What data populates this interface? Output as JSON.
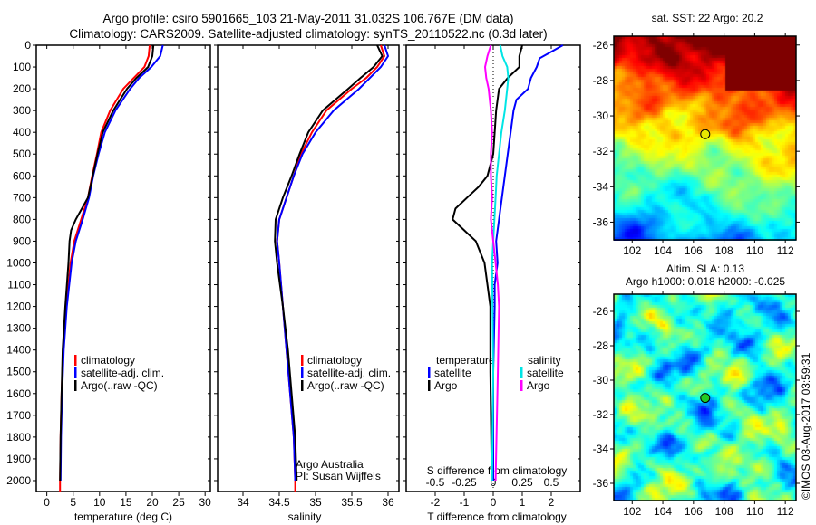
{
  "title_line1": "Argo profile: csiro 5901665_103 21-May-2011 31.032S 106.767E (DM data)",
  "title_line2": "Climatology: CARS2009. Satellite-adjusted climatology: synTS_20110522.nc (0.3d later)",
  "timestamp": "©IMOS 03-Aug-2017 03:59:31",
  "colors": {
    "climatology": "#ff0000",
    "satellite": "#0000ff",
    "argo": "#000000",
    "sal_satellite": "#00e5e5",
    "sal_argo": "#ff00ff"
  },
  "chart_data": [
    {
      "type": "line",
      "xlabel": "temperature (deg C)",
      "ylabel": "",
      "xlim": [
        -2,
        31
      ],
      "ylim": [
        2050,
        0
      ],
      "xticks": [
        0,
        5,
        10,
        15,
        20,
        25,
        30
      ],
      "yticks": [
        0,
        100,
        200,
        300,
        400,
        500,
        600,
        700,
        800,
        900,
        1000,
        1100,
        1200,
        1300,
        1400,
        1500,
        1600,
        1700,
        1800,
        1900,
        2000
      ],
      "legend": [
        "climatology",
        "satellite-adj. clim.",
        "Argo(..raw -QC)"
      ],
      "series": [
        {
          "name": "climatology",
          "color": "#ff0000",
          "depth": [
            0,
            50,
            100,
            150,
            200,
            300,
            400,
            500,
            600,
            700,
            800,
            900,
            1000,
            1200,
            1400,
            1600,
            1800,
            2000,
            2050
          ],
          "values": [
            19.5,
            19.3,
            18.5,
            16.5,
            14.5,
            12,
            10.3,
            9.5,
            8.6,
            7.8,
            6.5,
            5.2,
            4.5,
            3.7,
            3.1,
            2.8,
            2.6,
            2.5,
            2.5
          ]
        },
        {
          "name": "satellite-adj. clim.",
          "color": "#0000ff",
          "depth": [
            0,
            50,
            100,
            150,
            200,
            300,
            400,
            500,
            600,
            700,
            800,
            900,
            1000,
            1200,
            1400,
            1600,
            1800,
            2000
          ],
          "values": [
            22,
            21.5,
            19.8,
            17.5,
            15.8,
            13,
            11,
            9.8,
            8.8,
            8,
            6.8,
            5.5,
            4.7,
            3.8,
            3.2,
            2.9,
            2.7,
            2.6
          ]
        },
        {
          "name": "Argo(..raw -QC)",
          "color": "#000000",
          "depth": [
            0,
            50,
            100,
            150,
            200,
            300,
            400,
            500,
            600,
            700,
            800,
            850,
            900,
            1000,
            1200,
            1400,
            1600,
            1800,
            2000
          ],
          "values": [
            20.2,
            20,
            19.2,
            17,
            15.2,
            12.6,
            10.6,
            9.6,
            8.7,
            7.8,
            5.5,
            4.6,
            4.3,
            4.1,
            3.5,
            3.0,
            2.8,
            2.6,
            2.5
          ]
        }
      ]
    },
    {
      "type": "line",
      "xlabel": "salinity",
      "xlim": [
        33.65,
        36.15
      ],
      "ylim": [
        2050,
        0
      ],
      "xticks": [
        34,
        34.5,
        35,
        35.5,
        36
      ],
      "legend": [
        "climatology",
        "satellite-adj. clim.",
        "Argo(..raw -QC)"
      ],
      "annotation": [
        "Argo Australia",
        "PI: Susan Wijffels"
      ],
      "series": [
        {
          "name": "climatology",
          "color": "#ff0000",
          "depth": [
            0,
            50,
            100,
            150,
            200,
            300,
            400,
            500,
            600,
            700,
            800,
            900,
            1000,
            1200,
            1400,
            1600,
            1800,
            2000,
            2050
          ],
          "values": [
            35.9,
            35.95,
            35.85,
            35.7,
            35.5,
            35.15,
            34.95,
            34.8,
            34.7,
            34.6,
            34.5,
            34.47,
            34.5,
            34.55,
            34.6,
            34.65,
            34.7,
            34.72,
            34.72
          ]
        },
        {
          "name": "satellite-adj. clim.",
          "color": "#0000ff",
          "depth": [
            0,
            50,
            100,
            150,
            200,
            300,
            400,
            500,
            600,
            700,
            800,
            900,
            1000,
            1200,
            1400,
            1600,
            1800,
            2000
          ],
          "values": [
            35.95,
            36.0,
            35.9,
            35.75,
            35.6,
            35.25,
            35.0,
            34.82,
            34.7,
            34.6,
            34.5,
            34.47,
            34.5,
            34.55,
            34.6,
            34.65,
            34.7,
            34.72
          ]
        },
        {
          "name": "Argo(..raw -QC)",
          "color": "#000000",
          "depth": [
            0,
            50,
            100,
            150,
            200,
            300,
            400,
            500,
            600,
            700,
            800,
            900,
            1000,
            1200,
            1400,
            1600,
            1800,
            2000
          ],
          "values": [
            35.85,
            35.92,
            35.8,
            35.62,
            35.45,
            35.1,
            34.9,
            34.78,
            34.67,
            34.55,
            34.45,
            34.44,
            34.47,
            34.55,
            34.62,
            34.67,
            34.72,
            34.74
          ]
        }
      ]
    },
    {
      "type": "line",
      "xlabel": "T difference from climatology",
      "xlabel2": "S difference from climatology",
      "xlim": [
        -3,
        3
      ],
      "ylim": [
        2050,
        0
      ],
      "xticks": [
        -2,
        -1,
        0,
        1,
        2
      ],
      "xticks2": [
        -0.5,
        -0.25,
        0,
        0.25,
        0.5
      ],
      "legend_temperature_title": "temperature",
      "legend_salinity_title": "salinity",
      "legend": [
        "satellite",
        "Argo",
        "satellite",
        "Argo"
      ],
      "series": [
        {
          "name": "temperature satellite",
          "color": "#0000ff",
          "units": "T",
          "depth": [
            0,
            30,
            60,
            100,
            150,
            200,
            250,
            300,
            400,
            500,
            600,
            700,
            800,
            900,
            1000,
            1100,
            1200,
            1500,
            2000
          ],
          "values": [
            2.4,
            2.0,
            1.6,
            1.5,
            1.3,
            1.2,
            0.8,
            0.7,
            0.6,
            0.5,
            0.4,
            0.3,
            0.2,
            0.1,
            0.15,
            0.05,
            0.05,
            0.0,
            0.0
          ]
        },
        {
          "name": "temperature Argo",
          "color": "#000000",
          "units": "T",
          "depth": [
            0,
            50,
            100,
            150,
            200,
            300,
            400,
            500,
            600,
            650,
            700,
            750,
            800,
            850,
            900,
            1000,
            1100,
            1200,
            1500,
            2000
          ],
          "values": [
            1.0,
            0.9,
            0.9,
            0.5,
            0.2,
            0.1,
            0.05,
            0.0,
            -0.2,
            -0.5,
            -0.9,
            -1.3,
            -1.4,
            -1.0,
            -0.6,
            -0.3,
            -0.2,
            -0.1,
            -0.1,
            -0.05
          ]
        },
        {
          "name": "salinity satellite",
          "color": "#00e5e5",
          "units": "S",
          "depth": [
            0,
            50,
            100,
            150,
            200,
            300,
            400,
            500,
            600,
            700,
            800,
            900,
            1000,
            1500,
            2000
          ],
          "values": [
            0.06,
            0.08,
            0.12,
            0.13,
            0.12,
            0.1,
            0.07,
            0.05,
            0.03,
            0.02,
            0.01,
            0.0,
            -0.01,
            0.0,
            -0.01
          ]
        },
        {
          "name": "salinity Argo",
          "color": "#ff00ff",
          "units": "S",
          "depth": [
            0,
            50,
            100,
            150,
            200,
            300,
            400,
            500,
            600,
            700,
            800,
            900,
            1000,
            1100,
            1200,
            1500,
            2000
          ],
          "values": [
            -0.02,
            -0.05,
            -0.07,
            -0.06,
            -0.04,
            -0.02,
            -0.01,
            -0.02,
            -0.02,
            -0.01,
            -0.02,
            0.0,
            0.02,
            0.04,
            0.05,
            0.04,
            0.02
          ]
        }
      ]
    },
    {
      "type": "heatmap",
      "title": "sat. SST: 22  Argo: 20.2",
      "xticks": [
        102,
        104,
        106,
        108,
        110,
        112
      ],
      "yticks": [
        -26,
        -28,
        -30,
        -32,
        -34,
        -36
      ],
      "xlim": [
        100.8,
        112.7
      ],
      "ylim": [
        -37,
        -25.5
      ],
      "marker": {
        "lon": 106.767,
        "lat": -31.032
      }
    },
    {
      "type": "heatmap",
      "title": "Altim. SLA: 0.13",
      "subtitle": "Argo h1000: 0.018 h2000: -0.025",
      "xticks": [
        102,
        104,
        106,
        108,
        110,
        112
      ],
      "yticks": [
        -26,
        -28,
        -30,
        -32,
        -34,
        -36
      ],
      "xlim": [
        100.8,
        112.7
      ],
      "ylim": [
        -37,
        -25
      ],
      "marker": {
        "lon": 106.767,
        "lat": -31.032
      }
    }
  ]
}
